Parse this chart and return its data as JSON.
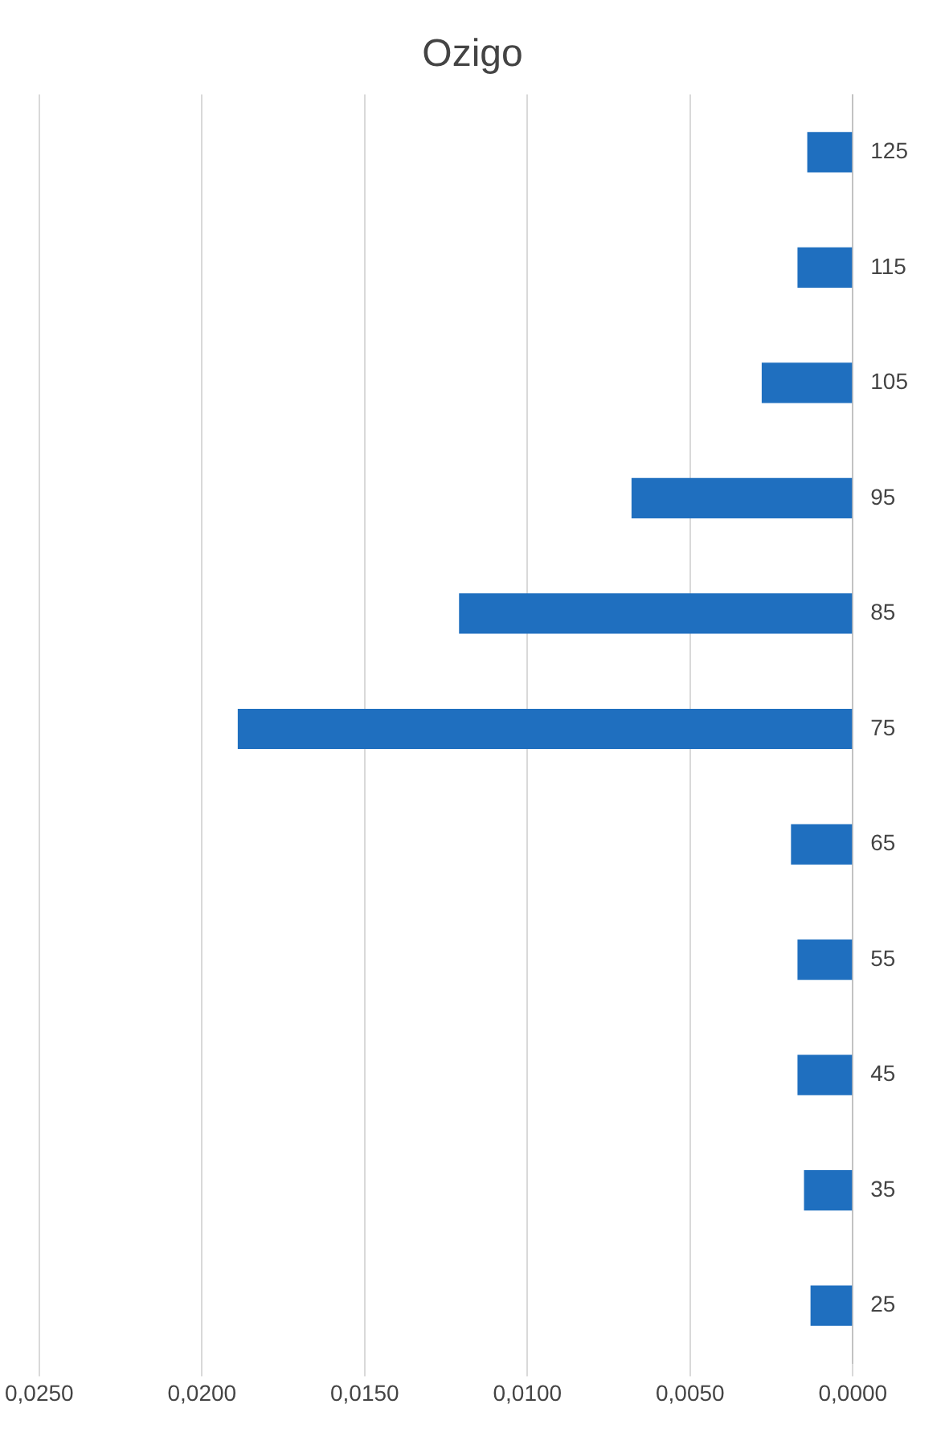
{
  "chart_data": {
    "type": "bar",
    "title": "Ozigo",
    "orientation": "horizontal",
    "categories": [
      "125",
      "115",
      "105",
      "95",
      "85",
      "75",
      "65",
      "55",
      "45",
      "35",
      "25"
    ],
    "values": [
      0.0014,
      0.0017,
      0.0028,
      0.0068,
      0.0121,
      0.0189,
      0.0019,
      0.0017,
      0.0017,
      0.0015,
      0.0013
    ],
    "color": "#1f6fbf",
    "xlim": [
      0.025,
      0
    ],
    "xticks": [
      {
        "value": 0.025,
        "label": "0,0250"
      },
      {
        "value": 0.02,
        "label": "0,0200"
      },
      {
        "value": 0.015,
        "label": "0,0150"
      },
      {
        "value": 0.01,
        "label": "0,0100"
      },
      {
        "value": 0.005,
        "label": "0,0050"
      },
      {
        "value": 0,
        "label": "0,0000"
      }
    ],
    "grid": "x",
    "legend": false
  }
}
